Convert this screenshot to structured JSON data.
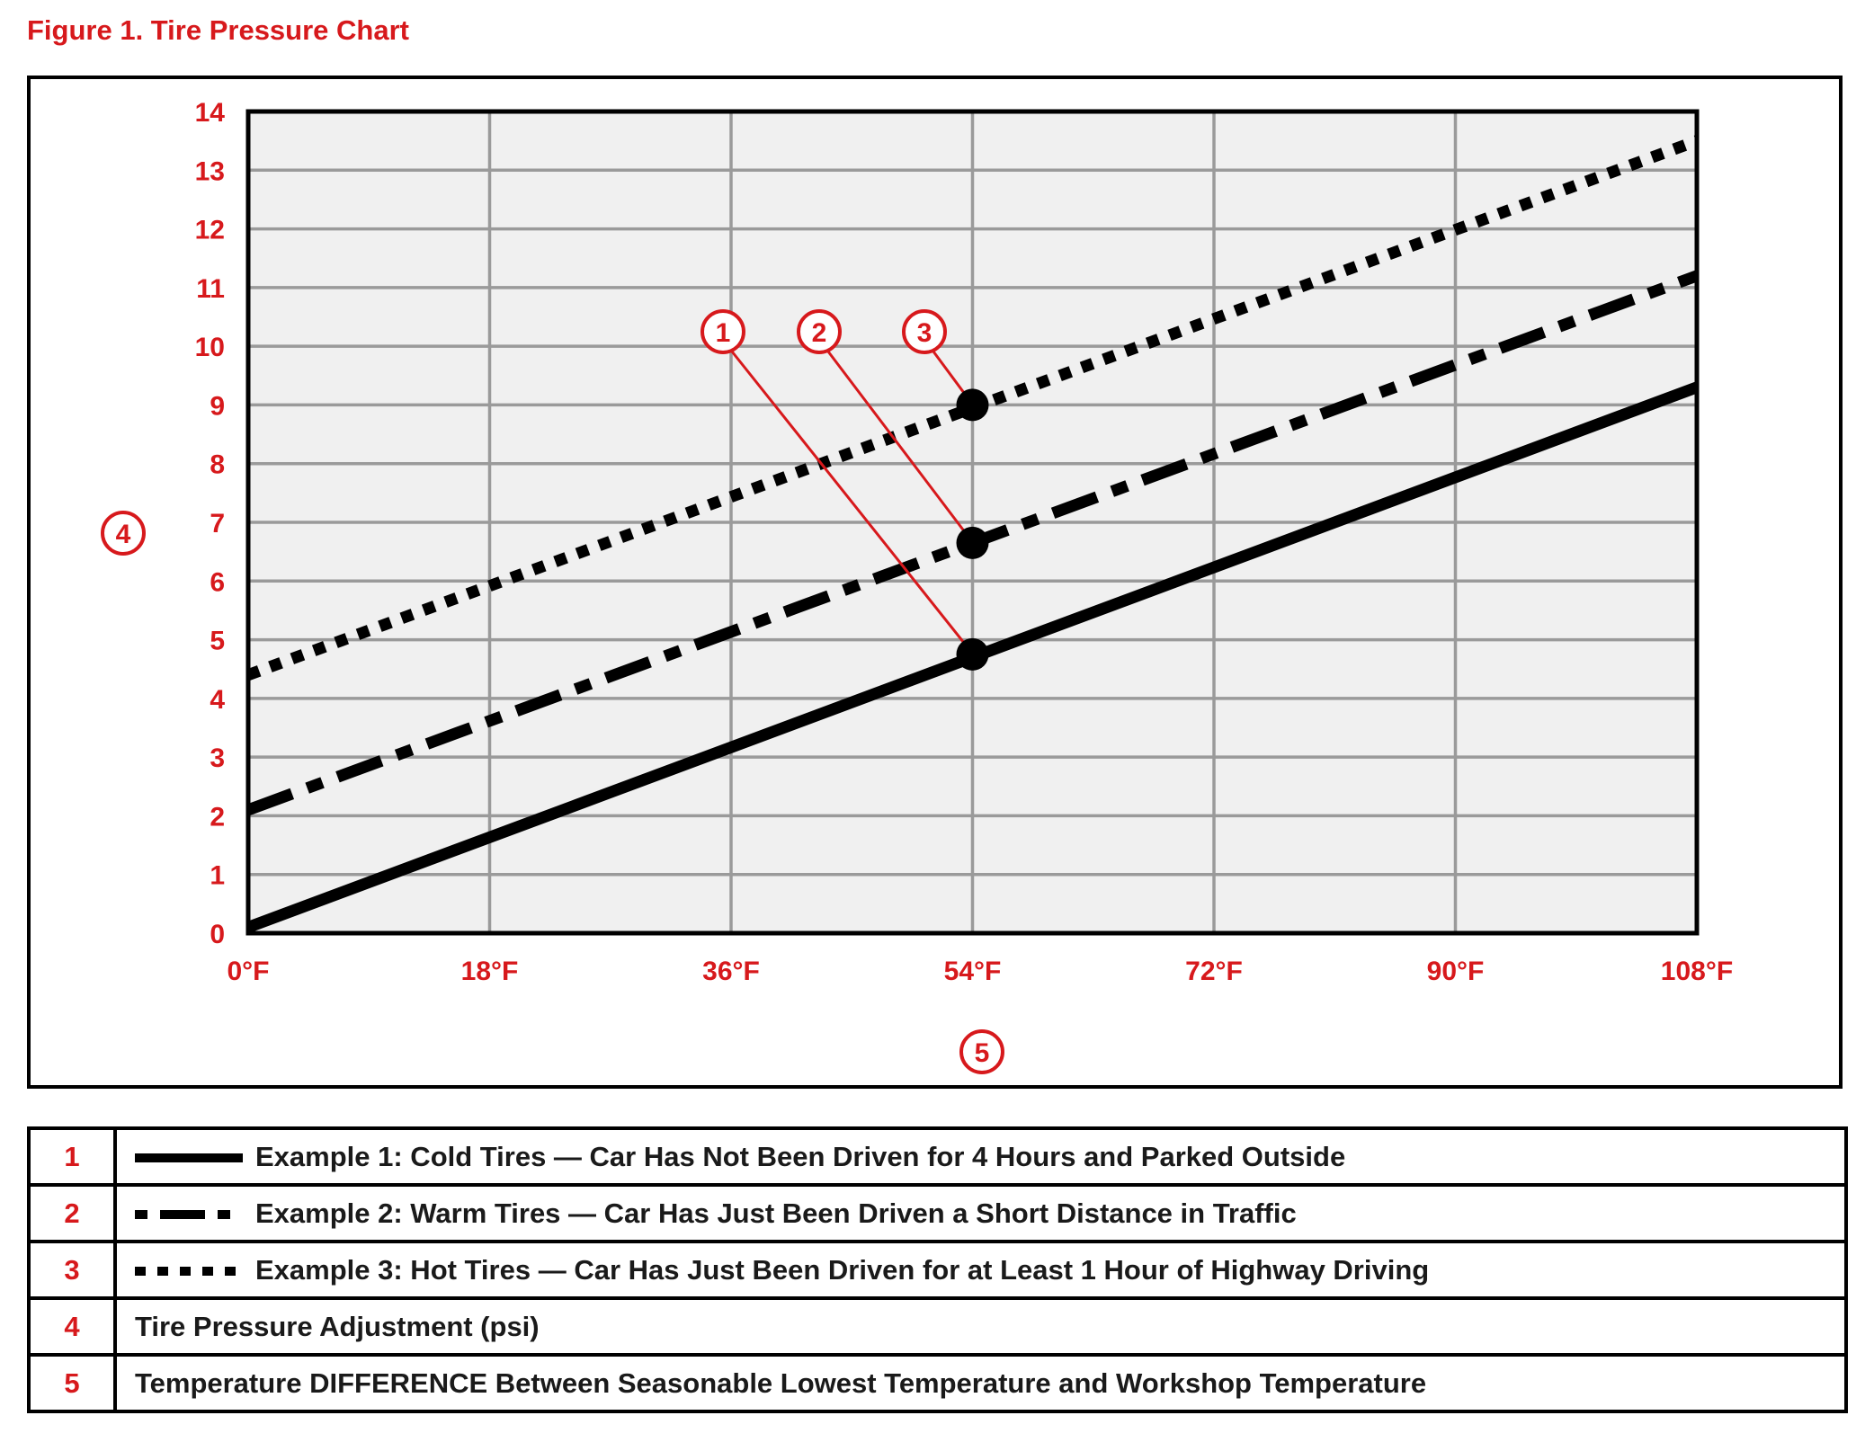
{
  "figure_title": "Figure 1.  Tire Pressure Chart",
  "colors": {
    "accent": "#d7191c",
    "line": "#000000",
    "grid": "#9a9a9a",
    "plot_bg": "#f0f0f0"
  },
  "chart_data": {
    "type": "line",
    "x_unit": "°F",
    "xlim": [
      0,
      108
    ],
    "ylim": [
      0,
      14
    ],
    "x_ticks": [
      "0°F",
      "18°F",
      "36°F",
      "54°F",
      "72°F",
      "90°F",
      "108°F"
    ],
    "y_ticks": [
      "0",
      "1",
      "2",
      "3",
      "4",
      "5",
      "6",
      "7",
      "8",
      "9",
      "10",
      "11",
      "12",
      "13",
      "14"
    ],
    "grid": true,
    "y_axis_callout": "4",
    "x_axis_callout": "5",
    "series": [
      {
        "callout": "1",
        "style": "solid",
        "x": [
          0,
          108
        ],
        "y": [
          0.1,
          9.3
        ]
      },
      {
        "callout": "2",
        "style": "dashed",
        "x": [
          0,
          108
        ],
        "y": [
          2.1,
          11.2
        ]
      },
      {
        "callout": "3",
        "style": "dotted",
        "x": [
          0,
          108
        ],
        "y": [
          4.4,
          13.5
        ]
      }
    ],
    "highlight_points": [
      {
        "callout": "1",
        "x": 54,
        "y": 4.75
      },
      {
        "callout": "2",
        "x": 54,
        "y": 6.65
      },
      {
        "callout": "3",
        "x": 54,
        "y": 9.0
      }
    ]
  },
  "legend": [
    {
      "num": "1",
      "style": "solid",
      "label": "Example 1:  Cold Tires — Car Has Not Been Driven for 4 Hours and Parked Outside"
    },
    {
      "num": "2",
      "style": "dashed",
      "label": "Example 2:  Warm Tires — Car Has Just Been Driven a Short Distance in Traffic"
    },
    {
      "num": "3",
      "style": "dotted",
      "label": "Example 3:  Hot Tires — Car Has Just Been Driven for at Least 1 Hour of Highway Driving"
    },
    {
      "num": "4",
      "style": "none",
      "label": "Tire Pressure Adjustment (psi)"
    },
    {
      "num": "5",
      "style": "none",
      "label": "Temperature DIFFERENCE Between Seasonable Lowest Temperature and Workshop Temperature"
    }
  ]
}
